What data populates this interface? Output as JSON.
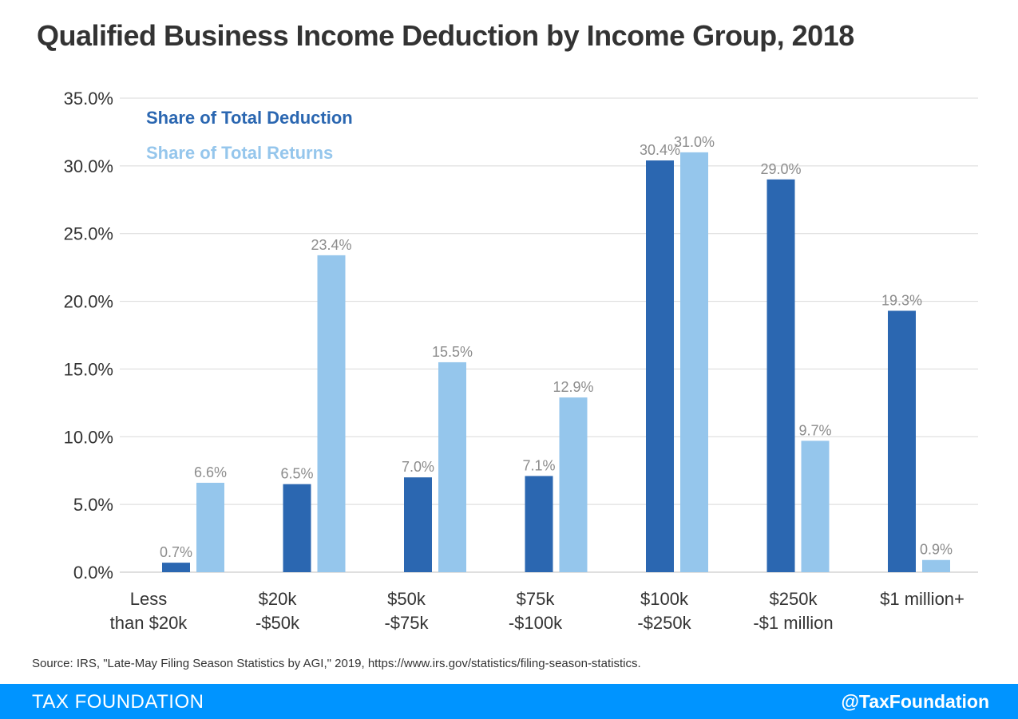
{
  "chart_data": {
    "type": "bar",
    "title": "Qualified Business Income Deduction by Income Group, 2018",
    "categories": [
      [
        "Less",
        "than $20k"
      ],
      [
        "$20k",
        "-$50k"
      ],
      [
        "$50k",
        "-$75k"
      ],
      [
        "$75k",
        "-$100k"
      ],
      [
        "$100k",
        "-$250k"
      ],
      [
        "$250k",
        "-$1 million"
      ],
      [
        "$1 million+"
      ]
    ],
    "series": [
      {
        "name": "Share of Total Deduction",
        "color": "#2b67b1",
        "values": [
          0.7,
          6.5,
          7.0,
          7.1,
          30.4,
          29.0,
          19.3
        ]
      },
      {
        "name": "Share of Total Returns",
        "color": "#95c6ec",
        "values": [
          6.6,
          23.4,
          15.5,
          12.9,
          31.0,
          9.7,
          0.9
        ]
      }
    ],
    "yticks": [
      "0.0%",
      "5.0%",
      "10.0%",
      "15.0%",
      "20.0%",
      "25.0%",
      "30.0%",
      "35.0%"
    ],
    "ylim": [
      0,
      35
    ],
    "grid": true,
    "legend": "top-left"
  },
  "source": "Source: IRS, \"Late-May Filing Season Statistics by AGI,\" 2019, https://www.irs.gov/statistics/filing-season-statistics.",
  "footer": {
    "brand": "TAX FOUNDATION",
    "handle": "@TaxFoundation"
  }
}
